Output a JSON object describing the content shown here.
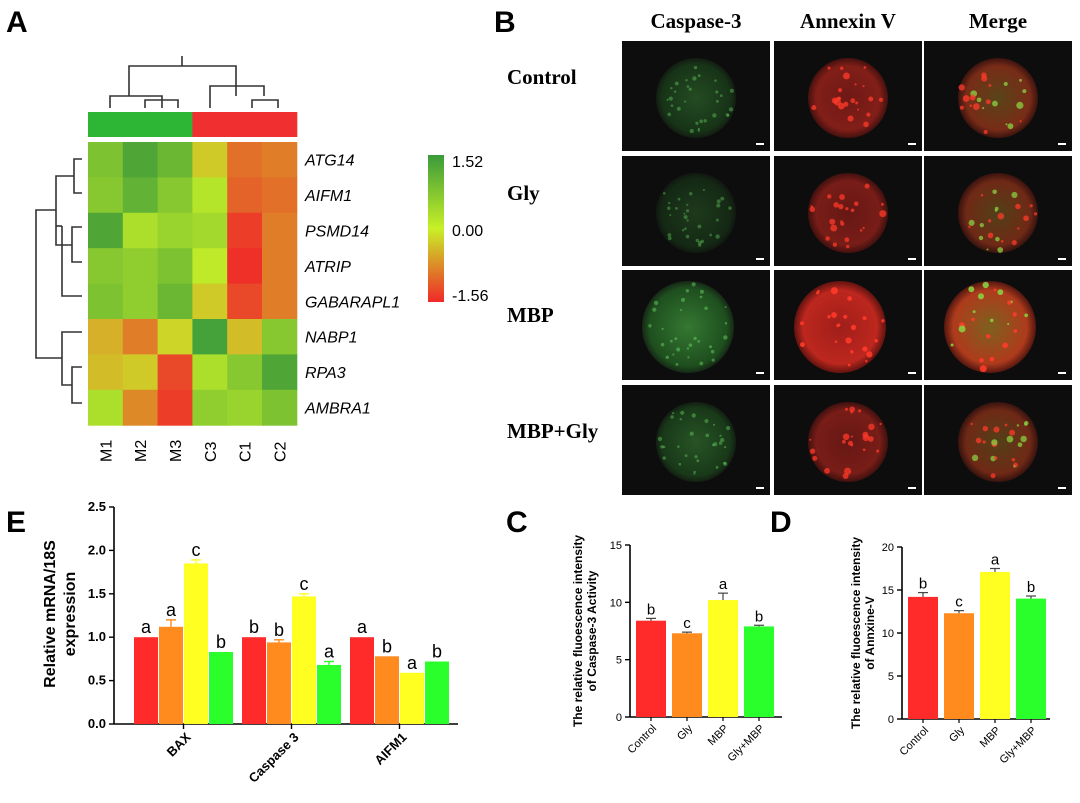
{
  "panels": {
    "A": "A",
    "B": "B",
    "C": "C",
    "D": "D",
    "E": "E"
  },
  "heatmap": {
    "samples": [
      "M1",
      "M2",
      "M3",
      "C3",
      "C1",
      "C2"
    ],
    "genes": [
      "ATG14",
      "AIFM1",
      "PSMD14",
      "ATRIP",
      "GABARAPL1",
      "NABP1",
      "RPA3",
      "AMBRA1"
    ],
    "values": [
      [
        0.8,
        1.3,
        1.0,
        -0.3,
        -1.0,
        -0.9
      ],
      [
        0.7,
        1.1,
        0.7,
        0.2,
        -1.1,
        -1.0
      ],
      [
        1.3,
        0.3,
        0.5,
        0.4,
        -1.4,
        -0.9
      ],
      [
        0.7,
        0.6,
        0.8,
        0.1,
        -1.5,
        -0.9
      ],
      [
        0.8,
        0.6,
        1.0,
        -0.3,
        -1.3,
        -0.9
      ],
      [
        -0.5,
        -0.9,
        -0.2,
        1.4,
        -0.4,
        0.7
      ],
      [
        -0.4,
        -0.3,
        -1.3,
        0.3,
        0.7,
        1.3
      ],
      [
        0.3,
        -0.8,
        -1.4,
        0.6,
        0.5,
        0.8
      ]
    ],
    "group_colors": [
      "#2db535",
      "#2db535",
      "#2db535",
      "#f03030",
      "#f03030",
      "#f03030"
    ],
    "scale": {
      "max": "1.52",
      "mid": "0.00",
      "min": "-1.56",
      "high_color": "#3a9a3a",
      "mid_color": "#c8f028",
      "low_color": "#f02828"
    }
  },
  "microscopy": {
    "columns": [
      "Caspase-3",
      "Annexin V",
      "Merge"
    ],
    "rows": [
      "Control",
      "Gly",
      "MBP",
      "MBP+Gly"
    ],
    "intensity": {
      "green": [
        0.35,
        0.25,
        0.6,
        0.4
      ],
      "red": [
        0.6,
        0.55,
        0.9,
        0.55
      ]
    }
  },
  "chart_data": [
    {
      "id": "E",
      "type": "bar",
      "ylabel": "Relative mRNA/18S expression",
      "ylim": [
        0,
        2.5
      ],
      "yticks": [
        "0.0",
        "0.5",
        "1.0",
        "1.5",
        "2.0",
        "2.5"
      ],
      "categories": [
        "BAX",
        "Caspase 3",
        "AIFM1"
      ],
      "series": [
        {
          "values": [
            1.0,
            1.0,
            1.0
          ],
          "errors": [
            0.0,
            0.0,
            0.0
          ],
          "letters": [
            "a",
            "b",
            "a"
          ],
          "color": "#ff2a2a"
        },
        {
          "values": [
            1.12,
            0.94,
            0.78
          ],
          "errors": [
            0.08,
            0.03,
            0.0
          ],
          "letters": [
            "a",
            "b",
            "b"
          ],
          "color": "#ff8a1e"
        },
        {
          "values": [
            1.85,
            1.47,
            0.59
          ],
          "errors": [
            0.04,
            0.03,
            0.0
          ],
          "letters": [
            "c",
            "c",
            "a"
          ],
          "color": "#ffff22"
        },
        {
          "values": [
            0.83,
            0.68,
            0.72
          ],
          "errors": [
            0.0,
            0.04,
            0.0
          ],
          "letters": [
            "b",
            "a",
            "b"
          ],
          "color": "#2bff2b"
        }
      ]
    },
    {
      "id": "C",
      "type": "bar",
      "ylabel": [
        "The relative fluoescence intensity",
        "of Caspase-3 Activity"
      ],
      "ylim": [
        0,
        15
      ],
      "yticks": [
        "0",
        "5",
        "10",
        "15"
      ],
      "categories": [
        "Control",
        "Gly",
        "MBP",
        "Gly+MBP"
      ],
      "values": [
        8.4,
        7.3,
        10.2,
        7.9
      ],
      "errors": [
        0.2,
        0.1,
        0.6,
        0.1
      ],
      "letters": [
        "b",
        "c",
        "a",
        "b"
      ],
      "colors": [
        "#ff2a2a",
        "#ff8a1e",
        "#ffff22",
        "#2bff2b"
      ]
    },
    {
      "id": "D",
      "type": "bar",
      "ylabel": [
        "The relative fluoescence intensity",
        "of Annxine-V"
      ],
      "ylim": [
        0,
        20
      ],
      "yticks": [
        "0",
        "5",
        "10",
        "15",
        "20"
      ],
      "categories": [
        "Control",
        "Gly",
        "MBP",
        "Gly+MBP"
      ],
      "values": [
        14.2,
        12.3,
        17.1,
        14.0
      ],
      "errors": [
        0.5,
        0.3,
        0.4,
        0.3
      ],
      "letters": [
        "b",
        "c",
        "a",
        "b"
      ],
      "colors": [
        "#ff2a2a",
        "#ff8a1e",
        "#ffff22",
        "#2bff2b"
      ]
    }
  ]
}
